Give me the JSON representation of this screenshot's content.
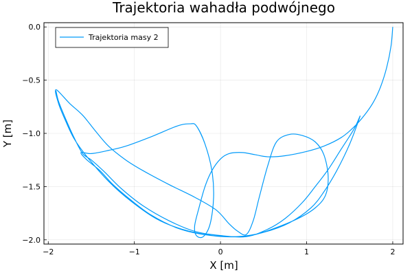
{
  "chart_data": {
    "type": "line",
    "title": "Trajektoria wahadła podwójnego",
    "xlabel": "X [m]",
    "ylabel": "Y [m]",
    "xlim": [
      -2.05,
      2.12
    ],
    "ylim": [
      -2.04,
      0.04
    ],
    "xticks": [
      -2,
      -1,
      0,
      1,
      2
    ],
    "xtick_labels": [
      "−2",
      "−1",
      "0",
      "1",
      "2"
    ],
    "yticks": [
      0,
      -0.5,
      -1,
      -1.5,
      -2
    ],
    "ytick_labels": [
      "0.0",
      "−0.5",
      "−1.0",
      "−1.5",
      "−2.0"
    ],
    "grid": true,
    "legend_position": "top-left",
    "series": [
      {
        "name": "Trajektoria masy 2",
        "color": "#009AFA",
        "points": [
          [
            2.0,
            0.0
          ],
          [
            1.98,
            -0.18
          ],
          [
            1.93,
            -0.38
          ],
          [
            1.86,
            -0.56
          ],
          [
            1.78,
            -0.7
          ],
          [
            1.68,
            -0.82
          ],
          [
            1.55,
            -0.94
          ],
          [
            1.4,
            -1.04
          ],
          [
            1.2,
            -1.12
          ],
          [
            1.0,
            -1.17
          ],
          [
            0.75,
            -1.21
          ],
          [
            0.55,
            -1.22
          ],
          [
            0.4,
            -1.2
          ],
          [
            0.25,
            -1.18
          ],
          [
            0.1,
            -1.19
          ],
          [
            0.0,
            -1.24
          ],
          [
            -0.1,
            -1.35
          ],
          [
            -0.18,
            -1.5
          ],
          [
            -0.25,
            -1.7
          ],
          [
            -0.3,
            -1.87
          ],
          [
            -0.28,
            -1.96
          ],
          [
            -0.2,
            -1.97
          ],
          [
            -0.12,
            -1.85
          ],
          [
            -0.08,
            -1.6
          ],
          [
            -0.1,
            -1.35
          ],
          [
            -0.18,
            -1.1
          ],
          [
            -0.28,
            -0.93
          ],
          [
            -0.35,
            -0.91
          ],
          [
            -0.5,
            -0.93
          ],
          [
            -0.8,
            -1.03
          ],
          [
            -1.1,
            -1.12
          ],
          [
            -1.3,
            -1.16
          ],
          [
            -1.5,
            -1.19
          ],
          [
            -1.62,
            -1.18
          ],
          [
            -1.55,
            -1.25
          ],
          [
            -1.4,
            -1.35
          ],
          [
            -1.25,
            -1.48
          ],
          [
            -1.05,
            -1.62
          ],
          [
            -0.8,
            -1.77
          ],
          [
            -0.5,
            -1.89
          ],
          [
            -0.2,
            -1.95
          ],
          [
            0.1,
            -1.97
          ],
          [
            0.35,
            -1.96
          ],
          [
            0.6,
            -1.9
          ],
          [
            0.9,
            -1.8
          ],
          [
            1.1,
            -1.7
          ],
          [
            1.22,
            -1.58
          ],
          [
            1.25,
            -1.4
          ],
          [
            1.2,
            -1.2
          ],
          [
            1.1,
            -1.08
          ],
          [
            0.95,
            -1.02
          ],
          [
            0.8,
            -1.01
          ],
          [
            0.65,
            -1.08
          ],
          [
            0.55,
            -1.3
          ],
          [
            0.45,
            -1.6
          ],
          [
            0.38,
            -1.82
          ],
          [
            0.3,
            -1.95
          ],
          [
            0.2,
            -1.92
          ],
          [
            0.1,
            -1.85
          ],
          [
            -0.05,
            -1.72
          ],
          [
            -0.3,
            -1.6
          ],
          [
            -0.6,
            -1.48
          ],
          [
            -0.9,
            -1.35
          ],
          [
            -1.1,
            -1.25
          ],
          [
            -1.3,
            -1.12
          ],
          [
            -1.45,
            -0.98
          ],
          [
            -1.6,
            -0.83
          ],
          [
            -1.75,
            -0.72
          ],
          [
            -1.91,
            -0.59
          ],
          [
            -1.88,
            -0.72
          ],
          [
            -1.8,
            -0.88
          ],
          [
            -1.7,
            -1.05
          ],
          [
            -1.55,
            -1.22
          ],
          [
            -1.3,
            -1.45
          ],
          [
            -1.05,
            -1.63
          ],
          [
            -0.75,
            -1.8
          ],
          [
            -0.45,
            -1.9
          ],
          [
            -0.1,
            -1.96
          ],
          [
            0.2,
            -1.97
          ],
          [
            0.5,
            -1.93
          ],
          [
            0.8,
            -1.84
          ],
          [
            1.05,
            -1.7
          ],
          [
            1.2,
            -1.55
          ],
          [
            1.35,
            -1.35
          ],
          [
            1.5,
            -1.1
          ],
          [
            1.62,
            -0.84
          ],
          [
            1.55,
            -0.96
          ],
          [
            1.4,
            -1.15
          ],
          [
            1.25,
            -1.34
          ],
          [
            1.1,
            -1.5
          ],
          [
            0.95,
            -1.65
          ],
          [
            0.75,
            -1.8
          ],
          [
            0.55,
            -1.9
          ],
          [
            0.3,
            -1.97
          ],
          [
            0.0,
            -1.96
          ],
          [
            -0.3,
            -1.92
          ],
          [
            -0.6,
            -1.82
          ],
          [
            -0.9,
            -1.68
          ],
          [
            -1.15,
            -1.52
          ],
          [
            -1.35,
            -1.36
          ],
          [
            -1.5,
            -1.25
          ],
          [
            -1.6,
            -1.19
          ],
          [
            -1.7,
            -1.04
          ],
          [
            -1.8,
            -0.86
          ],
          [
            -1.88,
            -0.7
          ],
          [
            -1.91,
            -0.6
          ]
        ]
      }
    ]
  }
}
